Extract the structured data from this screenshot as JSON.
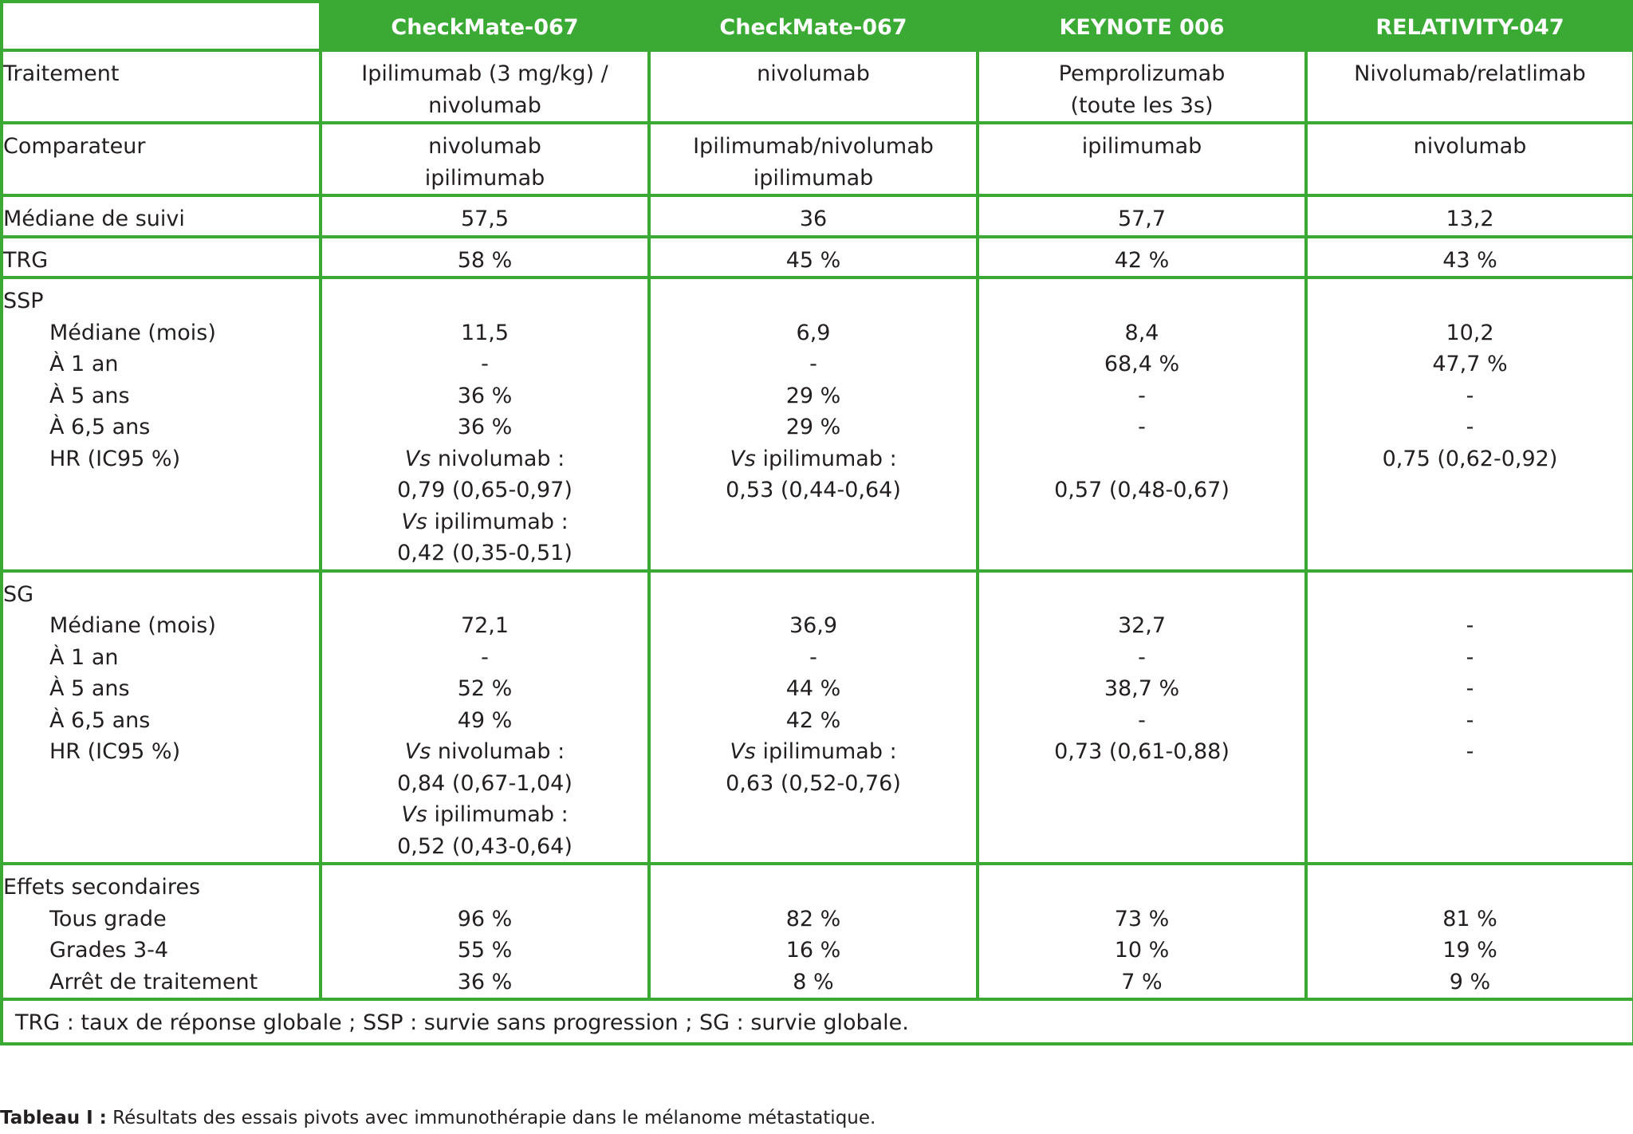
{
  "columns": [
    "CheckMate-067",
    "CheckMate-067",
    "KEYNOTE 006",
    "RELATIVITY-047"
  ],
  "rows": [
    {
      "label": [
        "Traitement"
      ],
      "cells": [
        [
          "Ipilimumab (3 mg/kg) /",
          "nivolumab"
        ],
        [
          "nivolumab"
        ],
        [
          "Pemprolizumab",
          "(toute les 3s)"
        ],
        [
          "Nivolumab/relatlimab"
        ]
      ]
    },
    {
      "label": [
        "Comparateur"
      ],
      "cells": [
        [
          "nivolumab",
          "ipilimumab"
        ],
        [
          "Ipilimumab/nivolumab",
          "ipilimumab"
        ],
        [
          "ipilimumab"
        ],
        [
          "nivolumab"
        ]
      ]
    },
    {
      "label": [
        "Médiane de suivi"
      ],
      "cells": [
        [
          "57,5"
        ],
        [
          "36"
        ],
        [
          "57,7"
        ],
        [
          "13,2"
        ]
      ]
    },
    {
      "label": [
        "TRG"
      ],
      "cells": [
        [
          "58 %"
        ],
        [
          "45 %"
        ],
        [
          "42 %"
        ],
        [
          "43 %"
        ]
      ]
    },
    {
      "label": [
        "SSP",
        "Médiane (mois)",
        "À 1 an",
        "À 5 ans",
        "À 6,5 ans",
        "HR (IC95 %)"
      ],
      "cells": [
        [
          "",
          "11,5",
          "-",
          "36 %",
          "36 %",
          "Vs| nivolumab :",
          "0,79 (0,65-0,97)",
          "Vs| ipilimumab :",
          "0,42 (0,35-0,51)"
        ],
        [
          "",
          "6,9",
          "-",
          "29 %",
          "29 %",
          "Vs| ipilimumab :",
          "0,53 (0,44-0,64)"
        ],
        [
          "",
          "8,4",
          "68,4 %",
          "-",
          "-",
          "",
          "0,57 (0,48-0,67)"
        ],
        [
          "",
          "10,2",
          "47,7 %",
          "-",
          "-",
          "0,75 (0,62-0,92)"
        ]
      ]
    },
    {
      "label": [
        "SG",
        "Médiane (mois)",
        "À 1 an",
        "À 5 ans",
        "À 6,5 ans",
        "HR (IC95 %)"
      ],
      "cells": [
        [
          "",
          "72,1",
          "-",
          "52 %",
          "49 %",
          "Vs| nivolumab :",
          "0,84 (0,67-1,04)",
          "Vs| ipilimumab :",
          "0,52 (0,43-0,64)"
        ],
        [
          "",
          "36,9",
          "-",
          "44 %",
          "42 %",
          "Vs| ipilimumab :",
          "0,63 (0,52-0,76)"
        ],
        [
          "",
          "32,7",
          "-",
          "38,7 %",
          "-",
          "0,73 (0,61-0,88)"
        ],
        [
          "",
          "-",
          "-",
          "-",
          "-",
          "-"
        ]
      ]
    },
    {
      "label": [
        "Effets secondaires",
        "Tous grade",
        "Grades 3-4",
        "Arrêt de traitement"
      ],
      "cells": [
        [
          "",
          "96 %",
          "55 %",
          "36 %"
        ],
        [
          "",
          "82 %",
          "16 %",
          "8 %"
        ],
        [
          "",
          "73 %",
          "10 %",
          "7 %"
        ],
        [
          "",
          "81 %",
          "19 %",
          "9 %"
        ]
      ]
    }
  ],
  "footnote": "TRG : taux de réponse globale ; SSP : survie sans progression ; SG : survie globale.",
  "caption": {
    "label": "Tableau I :",
    "text": " Résultats des essais pivots avec immunothérapie dans le mélanome métastatique."
  },
  "colors": {
    "border": "#3aaa35",
    "header_bg": "#3aaa35",
    "header_text": "#ffffff",
    "text": "#231f20"
  }
}
